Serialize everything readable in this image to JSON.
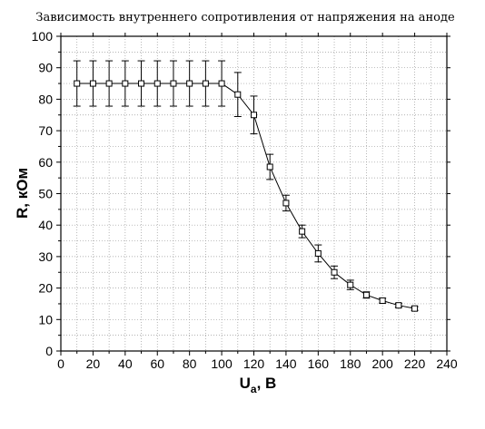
{
  "chart_data": {
    "type": "line",
    "title": "Зависимость внутреннего сопротивления от напряжения на аноде",
    "xlabel": {
      "main": "U",
      "subscript": "a",
      "rest": ", В"
    },
    "ylabel": "R, кОм",
    "xlim": [
      0,
      240
    ],
    "ylim": [
      0,
      100
    ],
    "x_ticks": [
      "0",
      "20",
      "40",
      "60",
      "80",
      "100",
      "120",
      "140",
      "160",
      "180",
      "200",
      "220",
      "240"
    ],
    "y_ticks": [
      "0",
      "10",
      "20",
      "30",
      "40",
      "50",
      "60",
      "70",
      "80",
      "90",
      "100"
    ],
    "grid": "dotted",
    "marker": "square",
    "series": [
      {
        "x": [
          10,
          20,
          30,
          40,
          50,
          60,
          70,
          80,
          90,
          100,
          110,
          120,
          130,
          140,
          150,
          160,
          170,
          180,
          190,
          200,
          210,
          220
        ],
        "y": [
          85,
          85,
          85,
          85,
          85,
          85,
          85,
          85,
          85,
          85,
          81.5,
          75,
          58.5,
          47,
          38,
          31,
          25,
          21,
          17.8,
          16,
          14.5,
          13.5
        ],
        "y_error": [
          7.2,
          7.2,
          7.2,
          7.2,
          7.2,
          7.2,
          7.2,
          7.2,
          7.2,
          7.2,
          7,
          6,
          4,
          2.5,
          2,
          2.7,
          2,
          1.5,
          1,
          0.8,
          0.6,
          0.6
        ],
        "x_error": [
          1.5,
          1.5,
          1.5,
          1.5,
          1.5,
          1.5,
          1.5,
          1.5,
          1.5,
          1.5,
          1.5,
          1.5,
          1.5,
          1.5,
          1.5,
          1.5,
          1.5,
          1.5,
          1.5,
          1.5,
          1.5,
          1.5
        ]
      }
    ]
  }
}
